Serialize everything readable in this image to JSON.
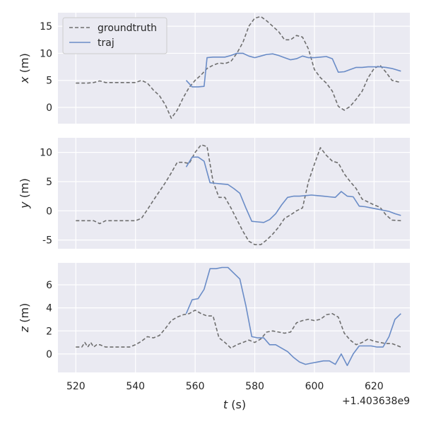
{
  "chart_data": {
    "type": "line",
    "xlabel": "t (s)",
    "x_offset_label": "+1.403638e9",
    "x_ticks": [
      520,
      540,
      560,
      580,
      600,
      620
    ],
    "xlim": [
      514,
      632
    ],
    "legend": {
      "placement": "top-left",
      "entries": [
        "groundtruth",
        "traj"
      ]
    },
    "style": {
      "groundtruth_color": "#6e6e6e",
      "traj_color": "#6a8cc7",
      "panel_bg": "#eaeaf2",
      "grid_color": "#ffffff"
    },
    "panels": [
      {
        "ylabel": "x (m)",
        "ylim": [
          -3,
          17.5
        ],
        "y_ticks": [
          0,
          5,
          10,
          15
        ],
        "series": [
          {
            "name": "groundtruth",
            "style": "dashed",
            "x": [
              520,
              524,
              526,
              528,
              530,
              535,
              538,
              540,
              542,
              544,
              546,
              548,
              550,
              552,
              554,
              556,
              558,
              560,
              562,
              564,
              566,
              568,
              570,
              572,
              574,
              576,
              578,
              580,
              582,
              584,
              586,
              588,
              590,
              592,
              594,
              596,
              598,
              600,
              602,
              604,
              606,
              608,
              610,
              612,
              614,
              616,
              618,
              620,
              622,
              624,
              626,
              629
            ],
            "y": [
              4.5,
              4.5,
              4.6,
              4.9,
              4.6,
              4.6,
              4.6,
              4.6,
              5.0,
              4.5,
              3.2,
              2.2,
              0.5,
              -2.0,
              -0.5,
              1.8,
              3.7,
              5.0,
              6.0,
              7.2,
              7.8,
              8.2,
              8.1,
              8.5,
              10.0,
              12.0,
              15.0,
              16.5,
              16.8,
              16.0,
              15.0,
              14.0,
              12.5,
              12.5,
              13.3,
              13.0,
              10.8,
              7.0,
              5.5,
              4.5,
              3.0,
              0.2,
              -0.5,
              0.2,
              1.5,
              3.0,
              5.5,
              7.2,
              7.8,
              6.5,
              5.0,
              4.6
            ]
          },
          {
            "name": "traj",
            "style": "solid",
            "x": [
              557,
              559,
              561,
              563,
              564,
              566,
              568,
              570,
              572,
              574,
              576,
              578,
              580,
              582,
              584,
              586,
              588,
              590,
              592,
              594,
              596,
              598,
              600,
              602,
              604,
              606,
              608,
              610,
              612,
              614,
              616,
              618,
              620,
              622,
              624,
              626,
              629
            ],
            "y": [
              5.0,
              3.8,
              3.8,
              3.9,
              9.2,
              9.3,
              9.3,
              9.3,
              9.6,
              10.0,
              10.0,
              9.5,
              9.2,
              9.5,
              9.8,
              9.9,
              9.6,
              9.2,
              8.8,
              9.0,
              9.5,
              9.2,
              9.2,
              9.3,
              9.4,
              9.0,
              6.5,
              6.6,
              7.0,
              7.4,
              7.4,
              7.5,
              7.5,
              7.5,
              7.4,
              7.2,
              6.7
            ]
          }
        ]
      },
      {
        "ylabel": "y (m)",
        "ylim": [
          -6.5,
          12.5
        ],
        "y_ticks": [
          -5,
          0,
          5,
          10
        ],
        "series": [
          {
            "name": "groundtruth",
            "style": "dashed",
            "x": [
              520,
              524,
              526,
              528,
              530,
              535,
              538,
              540,
              542,
              544,
              546,
              548,
              550,
              552,
              554,
              556,
              558,
              560,
              562,
              564,
              566,
              568,
              570,
              572,
              574,
              576,
              578,
              580,
              582,
              584,
              586,
              588,
              590,
              592,
              594,
              596,
              598,
              600,
              602,
              604,
              606,
              608,
              610,
              612,
              614,
              616,
              618,
              620,
              622,
              624,
              626,
              629
            ],
            "y": [
              -1.7,
              -1.7,
              -1.7,
              -2.2,
              -1.7,
              -1.7,
              -1.7,
              -1.7,
              -1.3,
              0.2,
              1.8,
              3.3,
              4.8,
              6.5,
              8.3,
              8.3,
              8.1,
              10.0,
              11.3,
              11.0,
              5.0,
              2.3,
              2.3,
              0.5,
              -1.5,
              -3.5,
              -5.2,
              -5.8,
              -5.8,
              -5.0,
              -4.0,
              -2.8,
              -1.3,
              -0.7,
              0.0,
              0.5,
              5.0,
              8.0,
              10.8,
              9.5,
              8.5,
              8.2,
              6.3,
              5.0,
              3.8,
              2.0,
              1.5,
              1.0,
              0.6,
              -0.7,
              -1.6,
              -1.7
            ]
          },
          {
            "name": "traj",
            "style": "solid",
            "x": [
              557,
              559,
              561,
              563,
              565,
              567,
              569,
              571,
              573,
              575,
              577,
              579,
              581,
              583,
              585,
              587,
              589,
              591,
              593,
              595,
              597,
              599,
              601,
              603,
              605,
              607,
              609,
              611,
              613,
              615,
              617,
              619,
              621,
              623,
              625,
              627,
              629
            ],
            "y": [
              7.5,
              9.2,
              9.2,
              8.5,
              4.8,
              4.7,
              4.6,
              4.5,
              3.8,
              3.0,
              0.5,
              -1.8,
              -1.9,
              -2.0,
              -1.5,
              -0.5,
              1.0,
              2.3,
              2.5,
              2.5,
              2.6,
              2.7,
              2.6,
              2.5,
              2.4,
              2.3,
              3.3,
              2.5,
              2.4,
              0.8,
              0.7,
              0.5,
              0.3,
              0.1,
              -0.1,
              -0.5,
              -0.8
            ]
          }
        ]
      },
      {
        "ylabel": "z (m)",
        "ylim": [
          -1.6,
          7.9
        ],
        "y_ticks": [
          0,
          2,
          4,
          6
        ],
        "series": [
          {
            "name": "groundtruth",
            "style": "dashed",
            "x": [
              520,
              522,
              523,
              524,
              525,
              526,
              527,
              528,
              530,
              532,
              535,
              538,
              540,
              542,
              544,
              546,
              548,
              550,
              552,
              554,
              556,
              558,
              560,
              562,
              564,
              566,
              568,
              570,
              572,
              574,
              576,
              578,
              580,
              582,
              584,
              586,
              588,
              590,
              592,
              594,
              596,
              598,
              600,
              602,
              604,
              606,
              608,
              610,
              612,
              614,
              616,
              618,
              620,
              622,
              624,
              626,
              629
            ],
            "y": [
              0.6,
              0.6,
              1.0,
              0.6,
              1.0,
              0.6,
              0.8,
              0.8,
              0.6,
              0.6,
              0.6,
              0.6,
              0.8,
              1.1,
              1.5,
              1.4,
              1.6,
              2.2,
              2.9,
              3.2,
              3.4,
              3.5,
              3.8,
              3.5,
              3.3,
              3.3,
              1.4,
              1.0,
              0.5,
              0.8,
              1.0,
              1.2,
              1.0,
              1.3,
              1.9,
              2.0,
              1.9,
              1.8,
              1.9,
              2.7,
              2.9,
              3.0,
              2.9,
              3.0,
              3.4,
              3.5,
              3.2,
              1.8,
              1.2,
              0.8,
              1.0,
              1.3,
              1.1,
              1.0,
              0.9,
              0.9,
              0.6
            ]
          },
          {
            "name": "traj",
            "style": "solid",
            "x": [
              557,
              559,
              561,
              563,
              565,
              567,
              569,
              571,
              573,
              575,
              577,
              579,
              581,
              583,
              585,
              587,
              589,
              591,
              593,
              595,
              597,
              599,
              601,
              603,
              605,
              607,
              609,
              611,
              613,
              615,
              617,
              619,
              621,
              623,
              625,
              627,
              629
            ],
            "y": [
              3.5,
              4.7,
              4.8,
              5.6,
              7.4,
              7.4,
              7.5,
              7.5,
              7.0,
              6.5,
              4.2,
              1.5,
              1.4,
              1.4,
              0.8,
              0.8,
              0.5,
              0.2,
              -0.3,
              -0.7,
              -0.9,
              -0.8,
              -0.7,
              -0.6,
              -0.6,
              -0.9,
              0.0,
              -1.0,
              0.0,
              0.7,
              0.7,
              0.7,
              0.6,
              0.6,
              1.5,
              3.0,
              3.5
            ]
          }
        ]
      }
    ]
  }
}
